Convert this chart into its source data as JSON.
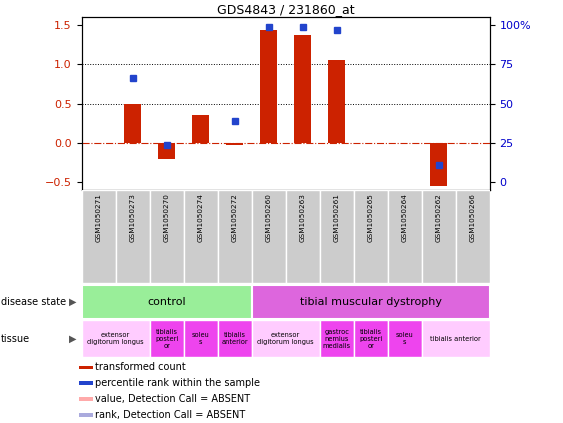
{
  "title": "GDS4843 / 231860_at",
  "samples": [
    "GSM1050271",
    "GSM1050273",
    "GSM1050270",
    "GSM1050274",
    "GSM1050272",
    "GSM1050260",
    "GSM1050263",
    "GSM1050261",
    "GSM1050265",
    "GSM1050264",
    "GSM1050262",
    "GSM1050266"
  ],
  "bar_values": [
    0.0,
    0.5,
    -0.2,
    0.35,
    -0.02,
    1.44,
    1.37,
    1.05,
    0.0,
    0.0,
    -0.55,
    0.0
  ],
  "dot_values": [
    null,
    0.83,
    -0.03,
    null,
    0.28,
    1.47,
    1.47,
    1.43,
    null,
    null,
    -0.28,
    null
  ],
  "bar_color": "#cc2200",
  "dot_color": "#2244cc",
  "hline_color": "#cc2200",
  "dotted_lines": [
    0.5,
    1.0
  ],
  "ylim": [
    -0.6,
    1.6
  ],
  "yticks_left": [
    -0.5,
    0.0,
    0.5,
    1.0,
    1.5
  ],
  "yticks_right": [
    0,
    25,
    50,
    75,
    100
  ],
  "yticks_right_pos": [
    -0.5,
    0.0,
    0.5,
    1.0,
    1.5
  ],
  "ylabel_left_color": "#cc2200",
  "ylabel_right_color": "#0000cc",
  "bar_width": 0.5,
  "tick_label_bg": "#cccccc",
  "disease_state_groups": [
    {
      "label": "control",
      "start": 0,
      "end": 4,
      "color": "#99ee99"
    },
    {
      "label": "tibial muscular dystrophy",
      "start": 5,
      "end": 11,
      "color": "#dd66dd"
    }
  ],
  "tissue_groups": [
    {
      "label": "extensor\ndigitorum longus",
      "start": 0,
      "end": 1,
      "color": "#ffccff"
    },
    {
      "label": "tibialis\nposteri\nor",
      "start": 2,
      "end": 2,
      "color": "#ee44ee"
    },
    {
      "label": "soleu\ns",
      "start": 3,
      "end": 3,
      "color": "#ee44ee"
    },
    {
      "label": "tibialis\nanterior",
      "start": 4,
      "end": 4,
      "color": "#ee44ee"
    },
    {
      "label": "extensor\ndigitorum longus",
      "start": 5,
      "end": 6,
      "color": "#ffccff"
    },
    {
      "label": "gastroc\nnemius\nmedialis",
      "start": 7,
      "end": 7,
      "color": "#ee44ee"
    },
    {
      "label": "tibialis\nposteri\nor",
      "start": 8,
      "end": 8,
      "color": "#ee44ee"
    },
    {
      "label": "soleu\ns",
      "start": 9,
      "end": 9,
      "color": "#ee44ee"
    },
    {
      "label": "tibialis anterior",
      "start": 10,
      "end": 11,
      "color": "#ffccff"
    }
  ],
  "legend_items": [
    {
      "color": "#cc2200",
      "label": "transformed count"
    },
    {
      "color": "#2244cc",
      "label": "percentile rank within the sample"
    },
    {
      "color": "#ffaaaa",
      "label": "value, Detection Call = ABSENT"
    },
    {
      "color": "#aaaadd",
      "label": "rank, Detection Call = ABSENT"
    }
  ]
}
